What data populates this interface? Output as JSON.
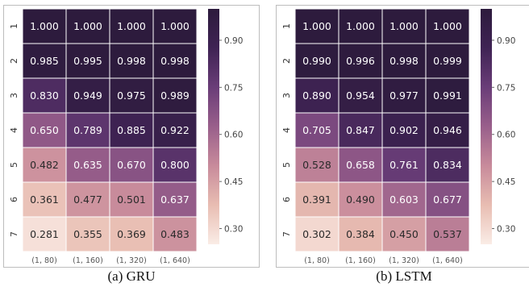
{
  "colorbar_ticks": [
    0.3,
    0.45,
    0.6,
    0.75,
    0.9
  ],
  "colorbar_range": [
    0.25,
    1.0
  ],
  "colormap": [
    "#faece6",
    "#e8bdb2",
    "#c88b9b",
    "#995f8b",
    "#6a3d78",
    "#3f2354",
    "#2d1b3d"
  ],
  "chart_data": [
    {
      "type": "heatmap",
      "caption": "(a) GRU",
      "x_tick_labels": [
        "(1, 80)",
        "(1, 160)",
        "(1, 320)",
        "(1, 640)"
      ],
      "y_tick_labels": [
        "1",
        "2",
        "3",
        "4",
        "5",
        "6",
        "7"
      ],
      "values": [
        [
          1.0,
          1.0,
          1.0,
          1.0
        ],
        [
          0.985,
          0.995,
          0.998,
          0.998
        ],
        [
          0.83,
          0.949,
          0.975,
          0.989
        ],
        [
          0.65,
          0.789,
          0.885,
          0.922
        ],
        [
          0.482,
          0.635,
          0.67,
          0.8
        ],
        [
          0.361,
          0.477,
          0.501,
          0.637
        ],
        [
          0.281,
          0.355,
          0.369,
          0.483
        ]
      ]
    },
    {
      "type": "heatmap",
      "caption": "(b) LSTM",
      "x_tick_labels": [
        "(1, 80)",
        "(1, 160)",
        "(1, 320)",
        "(1, 640)"
      ],
      "y_tick_labels": [
        "1",
        "2",
        "3",
        "4",
        "5",
        "6",
        "7"
      ],
      "values": [
        [
          1.0,
          1.0,
          1.0,
          1.0
        ],
        [
          0.99,
          0.996,
          0.998,
          0.999
        ],
        [
          0.89,
          0.954,
          0.977,
          0.991
        ],
        [
          0.705,
          0.847,
          0.902,
          0.946
        ],
        [
          0.528,
          0.658,
          0.761,
          0.834
        ],
        [
          0.391,
          0.49,
          0.603,
          0.677
        ],
        [
          0.302,
          0.384,
          0.45,
          0.537
        ]
      ]
    }
  ]
}
